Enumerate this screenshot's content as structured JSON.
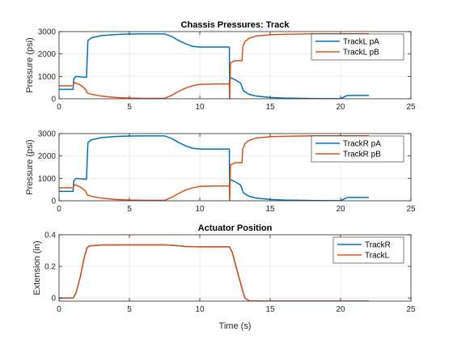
{
  "figure": {
    "background": "#ffffff"
  },
  "colors": {
    "blue": "#0072BD",
    "orange": "#D95319",
    "grid": "#ebebeb",
    "axis": "#262626"
  },
  "chart_data": [
    {
      "type": "line",
      "title": "Chassis Pressures: Track",
      "xlabel": "",
      "ylabel": "Pressure (psi)",
      "xlim": [
        0,
        25
      ],
      "ylim": [
        0,
        3000
      ],
      "xticks": [
        0,
        5,
        10,
        15,
        20,
        25
      ],
      "yticks": [
        0,
        1000,
        2000,
        3000
      ],
      "xtick_labels": [
        "0",
        "5",
        "10",
        "15",
        "20",
        "25"
      ],
      "ytick_labels": [
        "0",
        "1000",
        "2000",
        "3000"
      ],
      "grid": true,
      "legend": "top-right",
      "series": [
        {
          "name": "TrackL pA",
          "color": "#0072BD",
          "x": [
            0,
            1.0,
            1.05,
            1.2,
            1.5,
            1.95,
            2.05,
            2.3,
            3.0,
            4.0,
            5.0,
            6.0,
            7.5,
            8.0,
            8.5,
            9.0,
            9.5,
            10.0,
            11.0,
            12.1,
            12.12,
            12.15,
            12.5,
            12.9,
            13.1,
            13.5,
            14.0,
            15.0,
            16.0,
            18.0,
            20.0,
            20.5,
            21.0,
            22.0
          ],
          "y": [
            420,
            420,
            900,
            1000,
            980,
            960,
            2600,
            2720,
            2820,
            2870,
            2890,
            2895,
            2895,
            2780,
            2600,
            2450,
            2340,
            2310,
            2310,
            2310,
            0,
            950,
            850,
            700,
            350,
            200,
            120,
            60,
            30,
            10,
            5,
            150,
            150,
            150
          ]
        },
        {
          "name": "TrackL pB",
          "color": "#D95319",
          "x": [
            0,
            1.0,
            1.1,
            1.5,
            1.9,
            2.0,
            2.3,
            3.0,
            4.0,
            5.0,
            6.0,
            7.5,
            8.0,
            8.5,
            9.0,
            9.5,
            10.0,
            11.0,
            12.1,
            12.12,
            12.18,
            12.5,
            13.0,
            13.05,
            13.2,
            13.5,
            14.0,
            15.0,
            16.0,
            18.0,
            20.0,
            22.0
          ],
          "y": [
            580,
            580,
            720,
            620,
            420,
            260,
            200,
            120,
            60,
            30,
            20,
            20,
            150,
            330,
            480,
            580,
            640,
            660,
            660,
            0,
            1600,
            1700,
            1700,
            2300,
            2550,
            2700,
            2800,
            2860,
            2880,
            2900,
            2900,
            2900
          ]
        }
      ]
    },
    {
      "type": "line",
      "title": "",
      "xlabel": "",
      "ylabel": "Pressure (psi)",
      "xlim": [
        0,
        25
      ],
      "ylim": [
        0,
        3000
      ],
      "xticks": [
        0,
        5,
        10,
        15,
        20,
        25
      ],
      "yticks": [
        0,
        1000,
        2000,
        3000
      ],
      "xtick_labels": [
        "0",
        "5",
        "10",
        "15",
        "20",
        "25"
      ],
      "ytick_labels": [
        "0",
        "1000",
        "2000",
        "3000"
      ],
      "grid": true,
      "legend": "top-right",
      "series": [
        {
          "name": "TrackR pA",
          "color": "#0072BD",
          "x": [
            0,
            1.0,
            1.05,
            1.2,
            1.5,
            1.95,
            2.05,
            2.3,
            3.0,
            4.0,
            5.0,
            6.0,
            7.5,
            8.0,
            8.5,
            9.0,
            9.5,
            10.0,
            11.0,
            12.1,
            12.12,
            12.15,
            12.5,
            12.9,
            13.1,
            13.5,
            14.0,
            15.0,
            16.0,
            18.0,
            20.0,
            20.5,
            21.0,
            22.0
          ],
          "y": [
            420,
            420,
            900,
            1000,
            980,
            960,
            2600,
            2720,
            2820,
            2870,
            2890,
            2895,
            2895,
            2780,
            2600,
            2450,
            2340,
            2310,
            2310,
            2310,
            0,
            950,
            850,
            700,
            350,
            200,
            120,
            60,
            30,
            10,
            5,
            150,
            150,
            150
          ]
        },
        {
          "name": "TrackR pB",
          "color": "#D95319",
          "x": [
            0,
            1.0,
            1.1,
            1.5,
            1.9,
            2.0,
            2.3,
            3.0,
            4.0,
            5.0,
            6.0,
            7.5,
            8.0,
            8.5,
            9.0,
            9.5,
            10.0,
            11.0,
            12.1,
            12.12,
            12.18,
            12.5,
            13.0,
            13.05,
            13.2,
            13.5,
            14.0,
            15.0,
            16.0,
            18.0,
            20.0,
            22.0
          ],
          "y": [
            580,
            580,
            720,
            620,
            420,
            260,
            200,
            120,
            60,
            30,
            20,
            20,
            150,
            330,
            480,
            580,
            640,
            660,
            660,
            0,
            1600,
            1700,
            1700,
            2300,
            2550,
            2700,
            2800,
            2860,
            2880,
            2900,
            2900,
            2900
          ]
        }
      ]
    },
    {
      "type": "line",
      "title": "Actuator Position",
      "xlabel": "Time (s)",
      "ylabel": "Extension (in)",
      "xlim": [
        0,
        25
      ],
      "ylim": [
        -0.02,
        0.4
      ],
      "xticks": [
        0,
        5,
        10,
        15,
        20,
        25
      ],
      "yticks": [
        0,
        0.2,
        0.4
      ],
      "xtick_labels": [
        "0",
        "5",
        "10",
        "15",
        "20",
        "25"
      ],
      "ytick_labels": [
        "0",
        "0.2",
        "0.4"
      ],
      "grid": true,
      "legend": "top-right",
      "series": [
        {
          "name": "TrackR",
          "color": "#0072BD",
          "x": [
            0,
            1.0,
            1.2,
            1.5,
            1.8,
            2.0,
            2.2,
            3.0,
            5.0,
            7.5,
            8.0,
            9.0,
            10.0,
            11.0,
            12.1,
            12.3,
            12.6,
            13.0,
            13.2,
            13.5,
            15.0,
            20.0,
            22.0
          ],
          "y": [
            0,
            0,
            0.03,
            0.13,
            0.26,
            0.32,
            0.33,
            0.335,
            0.336,
            0.336,
            0.334,
            0.326,
            0.324,
            0.324,
            0.324,
            0.29,
            0.19,
            0.06,
            0.0,
            -0.018,
            -0.02,
            -0.02,
            -0.02
          ]
        },
        {
          "name": "TrackL",
          "color": "#D95319",
          "x": [
            0,
            1.0,
            1.2,
            1.5,
            1.8,
            2.0,
            2.2,
            3.0,
            5.0,
            7.5,
            8.0,
            9.0,
            10.0,
            11.0,
            12.1,
            12.3,
            12.6,
            13.0,
            13.2,
            13.5,
            15.0,
            20.0,
            22.0
          ],
          "y": [
            0,
            0,
            0.03,
            0.13,
            0.26,
            0.32,
            0.33,
            0.335,
            0.336,
            0.336,
            0.334,
            0.326,
            0.324,
            0.324,
            0.324,
            0.29,
            0.19,
            0.06,
            0.0,
            -0.018,
            -0.02,
            -0.02,
            -0.02
          ]
        }
      ]
    }
  ]
}
